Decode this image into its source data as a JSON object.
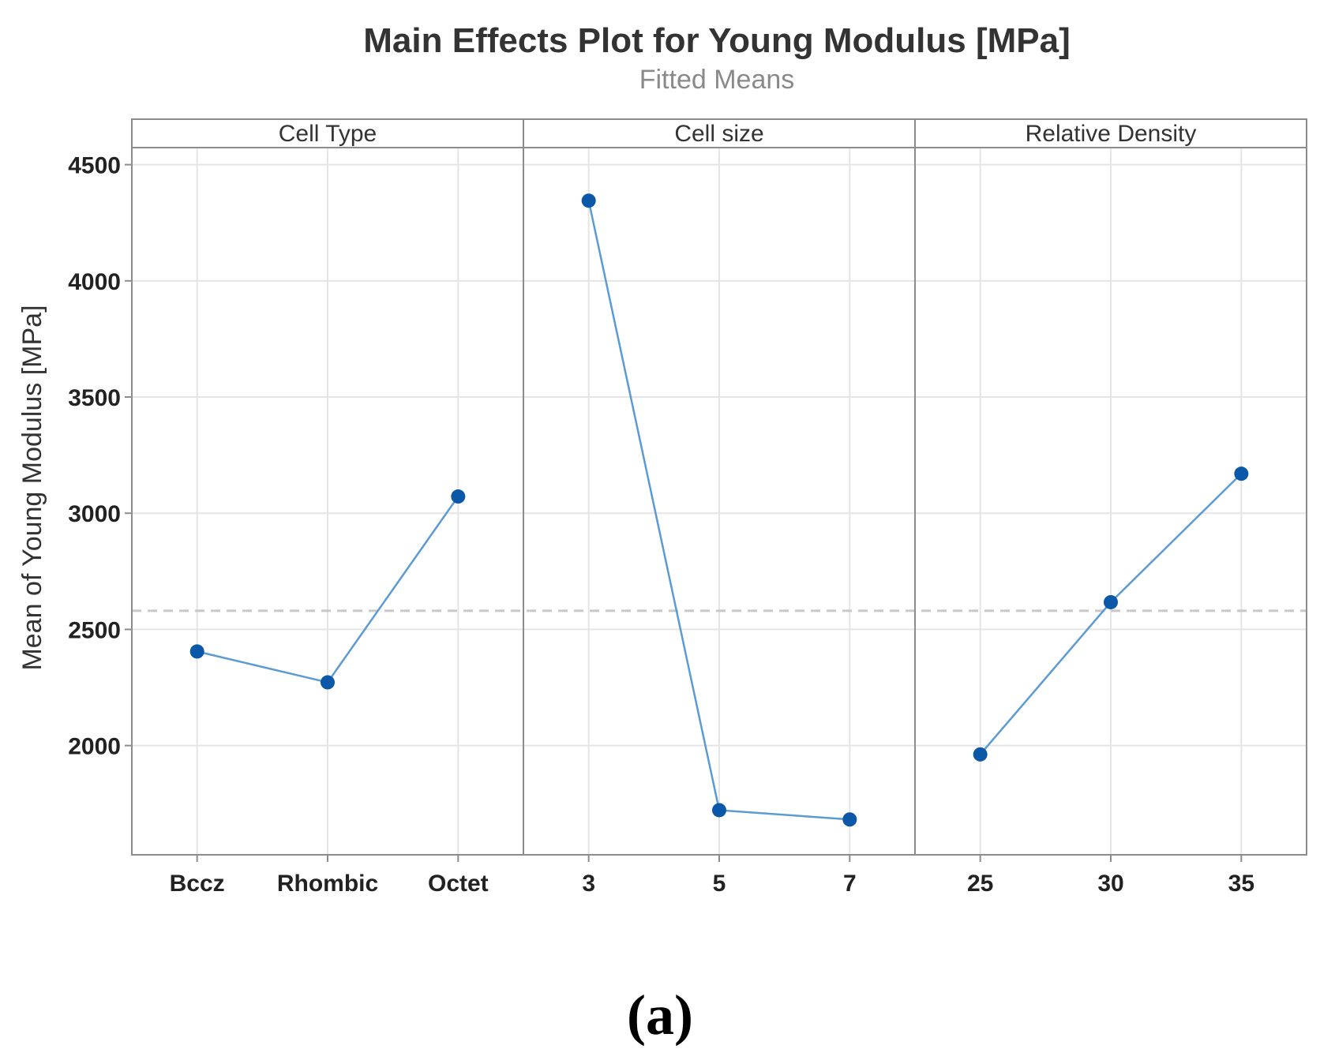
{
  "chart_data": {
    "type": "line",
    "title": "Main Effects Plot for Young Modulus [MPa]",
    "subtitle": "Fitted Means",
    "ylabel": "Mean of Young Modulus [MPa]",
    "ylim": [
      1530,
      4570
    ],
    "yticks": [
      2000,
      2500,
      3000,
      3500,
      4000,
      4500
    ],
    "overall_mean": 2580,
    "grid": true,
    "colors": {
      "line": "#5b9bd5",
      "marker": "#0b57a8",
      "grid": "#e5e5e5",
      "mean_line": "#c8c8c8",
      "frame": "#8c8c8c",
      "strip": "#ffffff"
    },
    "panels": [
      {
        "name": "Cell Type",
        "categories": [
          "Bccz",
          "Rhombic",
          "Octet"
        ],
        "values": [
          2405,
          2272,
          3072
        ]
      },
      {
        "name": "Cell size",
        "categories": [
          "3",
          "5",
          "7"
        ],
        "values": [
          4345,
          1722,
          1682
        ]
      },
      {
        "name": "Relative Density",
        "categories": [
          "25",
          "30",
          "35"
        ],
        "values": [
          1962,
          2617,
          3170
        ]
      }
    ]
  },
  "caption": "(a)"
}
